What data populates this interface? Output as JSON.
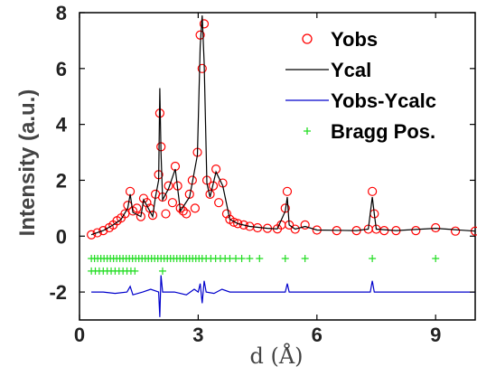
{
  "chart_data": {
    "type": "scatter",
    "xlabel": "d (Å)",
    "ylabel": "Intensity (a.u.)",
    "xlim": [
      0,
      10
    ],
    "ylim": [
      -3,
      8
    ],
    "xticks": [
      0,
      3,
      6,
      9
    ],
    "xtick_labels": [
      "0",
      "3",
      "6",
      "9"
    ],
    "yticks": [
      -2,
      0,
      2,
      4,
      6,
      8
    ],
    "ytick_labels": [
      "-2",
      "0",
      "2",
      "4",
      "6",
      "8"
    ],
    "grid": false,
    "legend_position": "top-right",
    "colors": {
      "yobs": "#ff0000",
      "ycal": "#000000",
      "diff": "#0000cc",
      "bragg": "#22dd22"
    },
    "series": [
      {
        "name": "Yobs",
        "kind": "open-circle",
        "x": [
          0.3,
          0.45,
          0.6,
          0.75,
          0.85,
          0.95,
          1.05,
          1.15,
          1.22,
          1.28,
          1.35,
          1.45,
          1.55,
          1.62,
          1.7,
          1.78,
          1.85,
          1.92,
          2.0,
          2.03,
          2.06,
          2.1,
          2.18,
          2.25,
          2.35,
          2.42,
          2.48,
          2.55,
          2.62,
          2.7,
          2.78,
          2.85,
          2.92,
          2.98,
          3.05,
          3.1,
          3.15,
          3.22,
          3.3,
          3.38,
          3.45,
          3.52,
          3.62,
          3.72,
          3.8,
          3.9,
          4.0,
          4.15,
          4.3,
          4.5,
          4.75,
          5.0,
          5.1,
          5.2,
          5.25,
          5.3,
          5.45,
          5.7,
          6.0,
          6.5,
          7.0,
          7.3,
          7.4,
          7.45,
          7.5,
          7.7,
          8.0,
          8.5,
          9.0,
          9.5,
          10.0
        ],
        "y": [
          0.05,
          0.12,
          0.2,
          0.3,
          0.4,
          0.55,
          0.65,
          0.8,
          1.1,
          1.6,
          0.9,
          1.0,
          0.7,
          1.35,
          1.2,
          1.0,
          0.75,
          1.5,
          2.2,
          4.4,
          3.2,
          1.4,
          0.8,
          1.8,
          1.2,
          2.5,
          1.8,
          1.0,
          0.9,
          0.8,
          1.5,
          2.0,
          1.0,
          3.0,
          7.2,
          6.0,
          7.6,
          2.0,
          1.5,
          1.8,
          2.4,
          1.2,
          1.9,
          0.8,
          0.6,
          0.5,
          0.45,
          0.4,
          0.35,
          0.3,
          0.28,
          0.26,
          0.4,
          1.0,
          1.6,
          0.4,
          0.25,
          0.4,
          0.22,
          0.2,
          0.2,
          0.25,
          1.6,
          0.8,
          0.25,
          0.2,
          0.2,
          0.2,
          0.3,
          0.18,
          0.18
        ]
      },
      {
        "name": "Ycal",
        "kind": "line",
        "x": [
          0.3,
          0.6,
          0.85,
          1.05,
          1.22,
          1.28,
          1.35,
          1.55,
          1.62,
          1.7,
          1.85,
          1.92,
          2.0,
          2.03,
          2.06,
          2.1,
          2.25,
          2.42,
          2.55,
          2.78,
          2.85,
          2.98,
          3.05,
          3.1,
          3.15,
          3.22,
          3.3,
          3.45,
          3.62,
          3.8,
          4.0,
          4.3,
          4.75,
          5.0,
          5.2,
          5.25,
          5.3,
          5.45,
          5.7,
          6.0,
          7.0,
          7.3,
          7.4,
          7.45,
          7.5,
          8.0,
          9.0,
          10.0
        ],
        "y": [
          0.05,
          0.2,
          0.4,
          0.6,
          1.0,
          1.5,
          0.85,
          0.7,
          1.3,
          1.1,
          0.7,
          1.4,
          2.0,
          5.3,
          3.0,
          1.3,
          1.7,
          2.4,
          0.9,
          1.4,
          1.9,
          2.9,
          6.8,
          7.9,
          6.2,
          1.9,
          1.4,
          2.3,
          1.8,
          0.6,
          0.45,
          0.35,
          0.28,
          0.26,
          0.9,
          1.4,
          0.4,
          0.25,
          0.35,
          0.22,
          0.2,
          0.25,
          1.4,
          0.8,
          0.25,
          0.2,
          0.28,
          0.18
        ]
      },
      {
        "name": "Yobs-Ycalc",
        "kind": "line",
        "x": [
          0.3,
          0.6,
          0.9,
          1.2,
          1.28,
          1.35,
          1.6,
          1.8,
          2.0,
          2.03,
          2.06,
          2.1,
          2.4,
          2.7,
          2.9,
          3.0,
          3.05,
          3.1,
          3.15,
          3.2,
          3.4,
          3.6,
          3.8,
          4.0,
          5.0,
          5.2,
          5.25,
          5.3,
          6.0,
          7.0,
          7.35,
          7.4,
          7.45,
          7.5,
          8.0,
          9.0,
          10.0
        ],
        "y": [
          -2.0,
          -2.0,
          -2.05,
          -2.0,
          -1.8,
          -2.1,
          -2.0,
          -1.9,
          -2.0,
          -2.9,
          -1.4,
          -2.0,
          -2.0,
          -2.1,
          -1.9,
          -2.0,
          -1.7,
          -2.4,
          -1.6,
          -2.0,
          -2.05,
          -1.9,
          -2.0,
          -2.0,
          -2.0,
          -2.0,
          -1.7,
          -2.0,
          -2.0,
          -2.0,
          -2.0,
          -1.6,
          -2.0,
          -2.0,
          -2.0,
          -2.0,
          -2.0
        ]
      },
      {
        "name": "Bragg Pos.",
        "kind": "plus",
        "x": [
          0.3,
          0.38,
          0.46,
          0.54,
          0.62,
          0.7,
          0.78,
          0.86,
          0.94,
          1.02,
          1.1,
          1.18,
          1.26,
          1.34,
          1.42,
          1.5,
          1.58,
          1.66,
          1.74,
          1.82,
          1.9,
          1.98,
          2.06,
          2.14,
          2.22,
          2.3,
          2.38,
          2.46,
          2.54,
          2.62,
          2.7,
          2.78,
          2.86,
          2.94,
          3.02,
          3.1,
          3.2,
          3.32,
          3.44,
          3.56,
          3.68,
          3.8,
          3.95,
          4.1,
          4.3,
          4.55,
          5.2,
          5.7,
          7.4,
          9.0
        ],
        "y": [
          -0.8,
          -0.8,
          -0.8,
          -0.8,
          -0.8,
          -0.8,
          -0.8,
          -0.8,
          -0.8,
          -0.8,
          -0.8,
          -0.8,
          -0.8,
          -0.8,
          -0.8,
          -0.8,
          -0.8,
          -0.8,
          -0.8,
          -0.8,
          -0.8,
          -0.8,
          -0.8,
          -0.8,
          -0.8,
          -0.8,
          -0.8,
          -0.8,
          -0.8,
          -0.8,
          -0.8,
          -0.8,
          -0.8,
          -0.8,
          -0.8,
          -0.8,
          -0.8,
          -0.8,
          -0.8,
          -0.8,
          -0.8,
          -0.8,
          -0.8,
          -0.8,
          -0.8,
          -0.8,
          -0.8,
          -0.8,
          -0.8,
          -0.8
        ]
      },
      {
        "name": "",
        "kind": "plus",
        "x": [
          0.3,
          0.4,
          0.5,
          0.6,
          0.7,
          0.8,
          0.9,
          1.0,
          1.1,
          1.2,
          1.3,
          1.4,
          2.1
        ],
        "y": [
          -1.25,
          -1.25,
          -1.25,
          -1.25,
          -1.25,
          -1.25,
          -1.25,
          -1.25,
          -1.25,
          -1.25,
          -1.25,
          -1.25,
          -1.25
        ]
      }
    ]
  }
}
